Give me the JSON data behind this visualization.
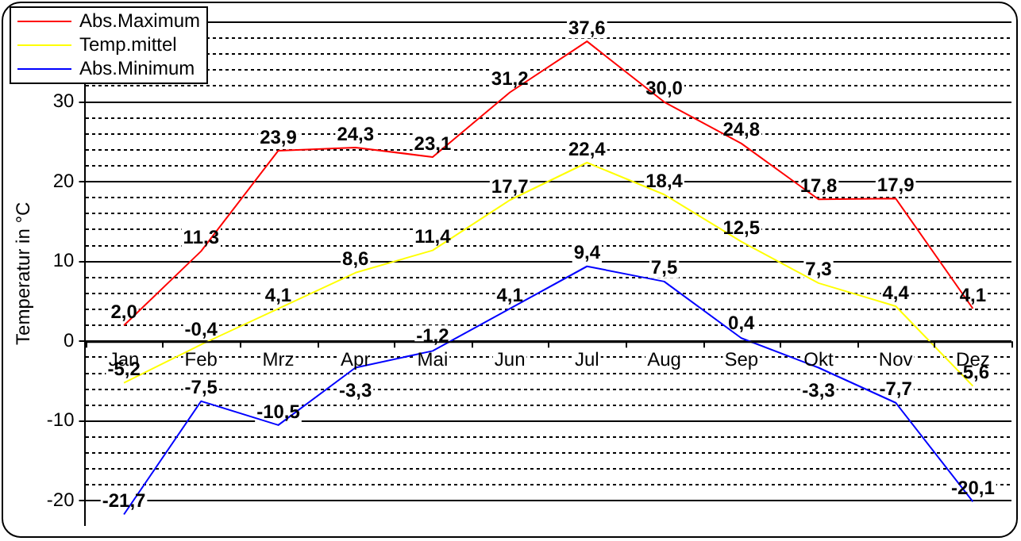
{
  "chart_data": {
    "type": "line",
    "ylabel": "Temperatur in °C",
    "categories": [
      "Jan",
      "Feb",
      "Mrz",
      "Apr",
      "Mai",
      "Jun",
      "Jul",
      "Aug",
      "Sep",
      "Okt",
      "Nov",
      "Dez"
    ],
    "series": [
      {
        "name": "Abs.Maximum",
        "color": "#ff0000",
        "values": [
          2.0,
          11.3,
          23.9,
          24.3,
          23.1,
          31.2,
          37.6,
          30.0,
          24.8,
          17.8,
          17.9,
          4.1
        ],
        "value_labels": [
          "2,0",
          "11,3",
          "23,9",
          "24,3",
          "23,1",
          "31,2",
          "37,6",
          "30,0",
          "24,8",
          "17,8",
          "17,9",
          "4,1"
        ]
      },
      {
        "name": "Temp.mittel",
        "color": "#ffff00",
        "values": [
          -5.2,
          -0.4,
          4.1,
          8.6,
          11.4,
          17.7,
          22.4,
          18.4,
          12.5,
          7.3,
          4.4,
          -5.6
        ],
        "value_labels": [
          "-5,2",
          "-0,4",
          "4,1",
          "8,6",
          "11,4",
          "17,7",
          "22,4",
          "18,4",
          "12,5",
          "7,3",
          "4,4",
          "-5,6"
        ]
      },
      {
        "name": "Abs.Minimum",
        "color": "#0000ff",
        "values": [
          -21.7,
          -7.5,
          -10.5,
          -3.3,
          -1.2,
          4.1,
          9.4,
          7.5,
          0.4,
          -3.3,
          -7.7,
          -20.1
        ],
        "value_labels": [
          "-21,7",
          "-7,5",
          "-10,5",
          "-3,3",
          "-1,2",
          "4,1",
          "9,4",
          "7,5",
          "0,4",
          "-3,3",
          "-7,7",
          "-20,1"
        ]
      }
    ],
    "ylim": [
      -23,
      40
    ],
    "yticks": [
      -20,
      {
        "value": -18,
        "label": null
      },
      {
        "value": -16,
        "label": null
      },
      {
        "value": -14,
        "label": null
      },
      {
        "value": -12,
        "label": null
      },
      -10,
      {
        "value": -8,
        "label": null
      },
      {
        "value": -6,
        "label": null
      },
      {
        "value": -4,
        "label": null
      },
      {
        "value": -2,
        "label": null
      },
      0,
      {
        "value": 2,
        "label": null
      },
      {
        "value": 4,
        "label": null
      },
      {
        "value": 6,
        "label": null
      },
      {
        "value": 8,
        "label": null
      },
      10,
      {
        "value": 12,
        "label": null
      },
      {
        "value": 14,
        "label": null
      },
      {
        "value": 16,
        "label": null
      },
      {
        "value": 18,
        "label": null
      },
      20,
      {
        "value": 22,
        "label": null
      },
      {
        "value": 24,
        "label": null
      },
      {
        "value": 26,
        "label": null
      },
      {
        "value": 28,
        "label": null
      },
      30,
      {
        "value": 32,
        "label": null
      },
      {
        "value": 34,
        "label": null
      },
      {
        "value": 36,
        "label": null
      },
      {
        "value": 38,
        "label": null
      },
      {
        "value": 40,
        "label": null
      }
    ],
    "grid": "y",
    "legend": "top left",
    "marker": "none",
    "line_style": "solid"
  }
}
